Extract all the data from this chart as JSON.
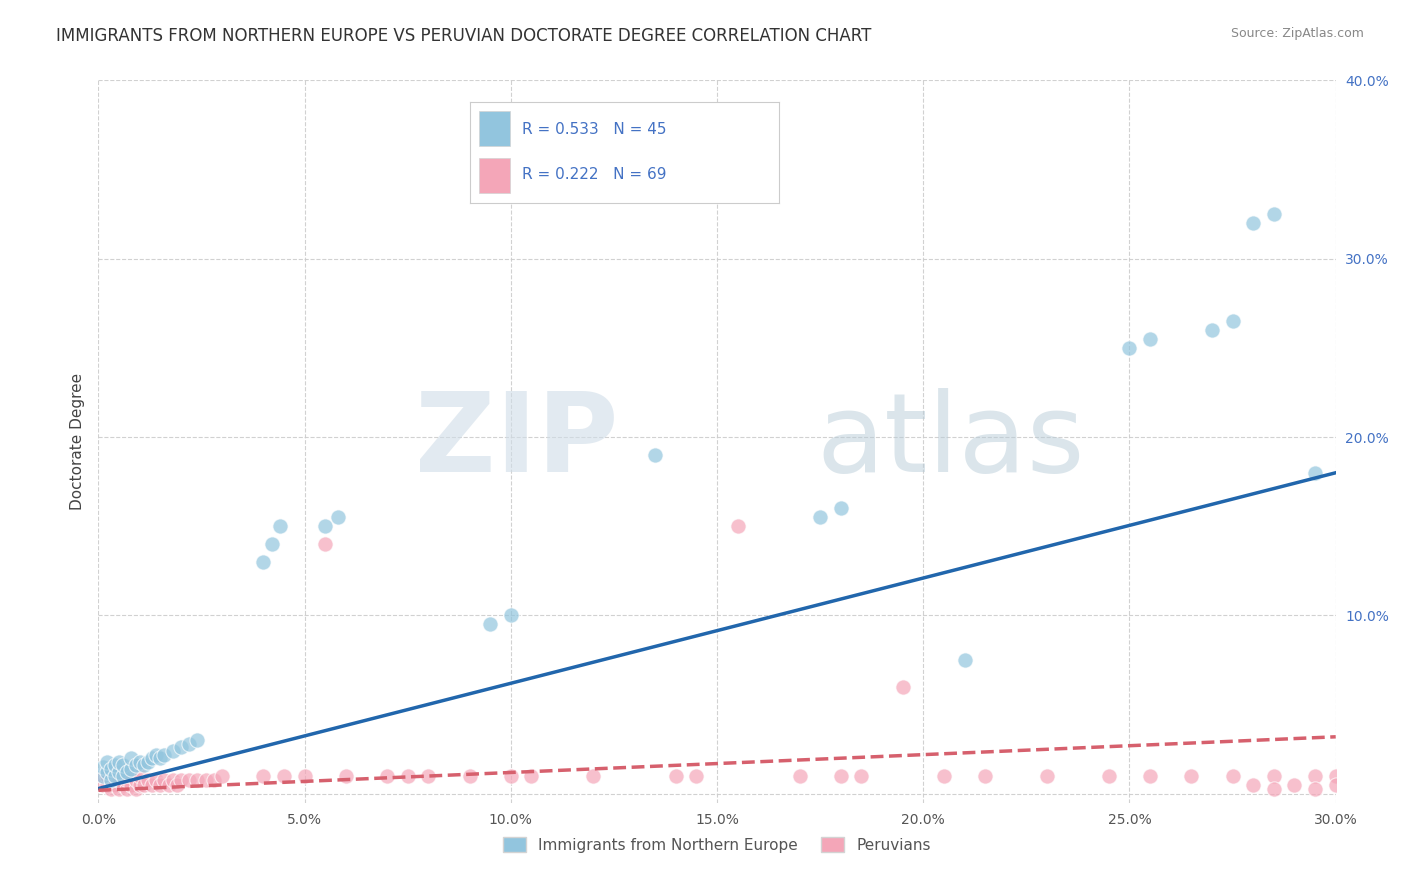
{
  "title": "IMMIGRANTS FROM NORTHERN EUROPE VS PERUVIAN DOCTORATE DEGREE CORRELATION CHART",
  "source": "Source: ZipAtlas.com",
  "ylabel": "Doctorate Degree",
  "xlim": [
    0.0,
    0.3
  ],
  "ylim": [
    -0.005,
    0.4
  ],
  "xticks": [
    0.0,
    0.05,
    0.1,
    0.15,
    0.2,
    0.25,
    0.3
  ],
  "yticks": [
    0.0,
    0.1,
    0.2,
    0.3,
    0.4
  ],
  "xtick_labels": [
    "0.0%",
    "5.0%",
    "10.0%",
    "15.0%",
    "20.0%",
    "25.0%",
    "30.0%"
  ],
  "ytick_labels": [
    "",
    "10.0%",
    "20.0%",
    "30.0%",
    "40.0%"
  ],
  "blue_color": "#92c5de",
  "pink_color": "#f4a6b8",
  "blue_line_color": "#2166ac",
  "pink_line_color": "#d6606d",
  "watermark_zip": "ZIP",
  "watermark_atlas": "atlas",
  "legend_R_blue": "R = 0.533",
  "legend_N_blue": "N = 45",
  "legend_R_pink": "R = 0.222",
  "legend_N_pink": "N = 69",
  "legend_label_blue": "Immigrants from Northern Europe",
  "legend_label_pink": "Peruvians",
  "blue_scatter_x": [
    0.001,
    0.001,
    0.002,
    0.002,
    0.003,
    0.003,
    0.004,
    0.004,
    0.005,
    0.005,
    0.006,
    0.006,
    0.007,
    0.008,
    0.008,
    0.009,
    0.01,
    0.011,
    0.012,
    0.013,
    0.014,
    0.015,
    0.016,
    0.018,
    0.02,
    0.022,
    0.024,
    0.04,
    0.042,
    0.044,
    0.055,
    0.058,
    0.095,
    0.1,
    0.135,
    0.175,
    0.18,
    0.21,
    0.25,
    0.255,
    0.27,
    0.275,
    0.28,
    0.285,
    0.295
  ],
  "blue_scatter_y": [
    0.01,
    0.015,
    0.012,
    0.018,
    0.008,
    0.014,
    0.01,
    0.016,
    0.012,
    0.018,
    0.01,
    0.016,
    0.012,
    0.014,
    0.02,
    0.016,
    0.018,
    0.016,
    0.018,
    0.02,
    0.022,
    0.02,
    0.022,
    0.024,
    0.026,
    0.028,
    0.03,
    0.13,
    0.14,
    0.15,
    0.15,
    0.155,
    0.095,
    0.1,
    0.19,
    0.155,
    0.16,
    0.075,
    0.25,
    0.255,
    0.26,
    0.265,
    0.32,
    0.325,
    0.18
  ],
  "pink_scatter_x": [
    0.001,
    0.001,
    0.002,
    0.002,
    0.003,
    0.003,
    0.004,
    0.004,
    0.005,
    0.005,
    0.006,
    0.006,
    0.007,
    0.007,
    0.008,
    0.008,
    0.009,
    0.009,
    0.01,
    0.01,
    0.011,
    0.012,
    0.013,
    0.014,
    0.015,
    0.016,
    0.017,
    0.018,
    0.019,
    0.02,
    0.022,
    0.024,
    0.026,
    0.028,
    0.03,
    0.04,
    0.045,
    0.05,
    0.055,
    0.06,
    0.07,
    0.075,
    0.08,
    0.09,
    0.1,
    0.105,
    0.12,
    0.14,
    0.145,
    0.155,
    0.17,
    0.18,
    0.185,
    0.195,
    0.205,
    0.215,
    0.23,
    0.245,
    0.255,
    0.265,
    0.275,
    0.285,
    0.295,
    0.3,
    0.3,
    0.295,
    0.29,
    0.285,
    0.28
  ],
  "pink_scatter_y": [
    0.005,
    0.01,
    0.005,
    0.01,
    0.003,
    0.008,
    0.005,
    0.01,
    0.003,
    0.008,
    0.005,
    0.01,
    0.003,
    0.008,
    0.005,
    0.01,
    0.003,
    0.008,
    0.005,
    0.01,
    0.005,
    0.008,
    0.005,
    0.008,
    0.005,
    0.008,
    0.005,
    0.008,
    0.005,
    0.008,
    0.008,
    0.008,
    0.008,
    0.008,
    0.01,
    0.01,
    0.01,
    0.01,
    0.14,
    0.01,
    0.01,
    0.01,
    0.01,
    0.01,
    0.01,
    0.01,
    0.01,
    0.01,
    0.01,
    0.15,
    0.01,
    0.01,
    0.01,
    0.06,
    0.01,
    0.01,
    0.01,
    0.01,
    0.01,
    0.01,
    0.01,
    0.01,
    0.01,
    0.01,
    0.005,
    0.003,
    0.005,
    0.003,
    0.005
  ],
  "blue_line_x": [
    0.0,
    0.3
  ],
  "blue_line_y": [
    0.003,
    0.18
  ],
  "pink_line_x": [
    0.0,
    0.3
  ],
  "pink_line_y": [
    0.002,
    0.032
  ]
}
